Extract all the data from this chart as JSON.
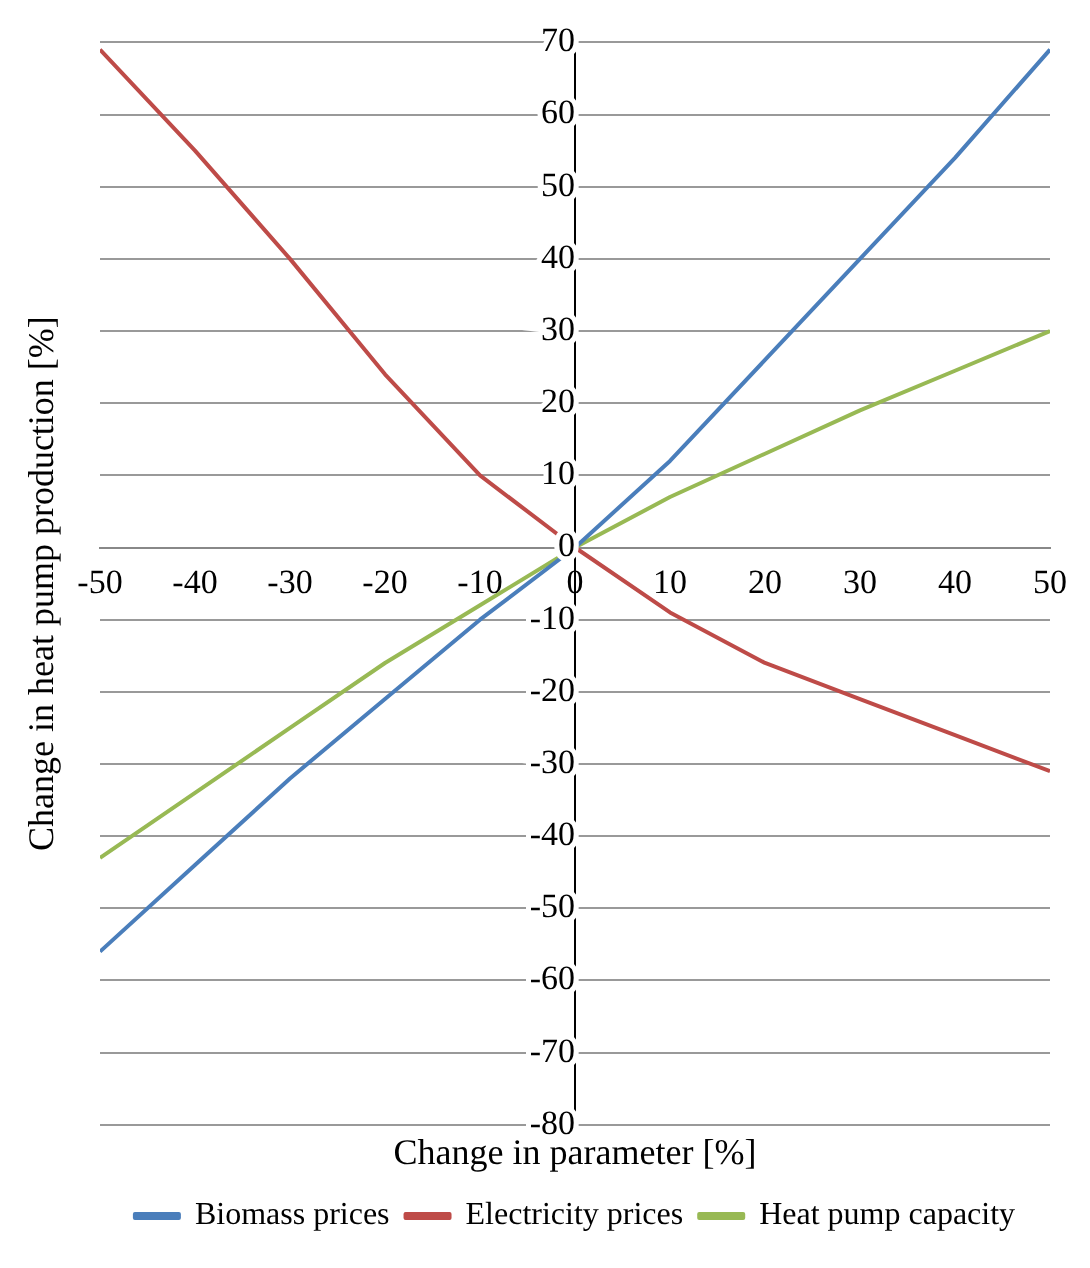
{
  "chart_data": {
    "type": "line",
    "xlabel": "Change in parameter [%]",
    "ylabel": "Change in heat pump production [%]",
    "x": [
      -50,
      -40,
      -30,
      -20,
      -10,
      0,
      10,
      20,
      30,
      40,
      50
    ],
    "series": [
      {
        "name": "Biomass prices",
        "color": "#4a7ebb",
        "values": [
          -56,
          -44,
          -32,
          -21,
          -10,
          0,
          12,
          26,
          40,
          54,
          69
        ]
      },
      {
        "name": "Electricity prices",
        "color": "#be4b48",
        "values": [
          69,
          55,
          40,
          24,
          10,
          0,
          -9,
          -16,
          -21,
          -26,
          -31
        ]
      },
      {
        "name": "Heat pump capacity",
        "color": "#98b954",
        "values": [
          -43,
          -34,
          -25,
          -16,
          -8,
          0,
          7,
          13,
          19,
          24.5,
          30
        ]
      }
    ],
    "xlim": [
      -50,
      50
    ],
    "xticks": [
      -50,
      -40,
      -30,
      -20,
      -10,
      0,
      10,
      20,
      30,
      40,
      50
    ],
    "ylim": [
      -80,
      70
    ],
    "yticks": [
      -80,
      -70,
      -60,
      -50,
      -40,
      -30,
      -20,
      -10,
      0,
      10,
      20,
      30,
      40,
      50,
      60,
      70
    ],
    "grid": "y",
    "legend": "bottom",
    "marker": "none",
    "line_style": "solid"
  }
}
